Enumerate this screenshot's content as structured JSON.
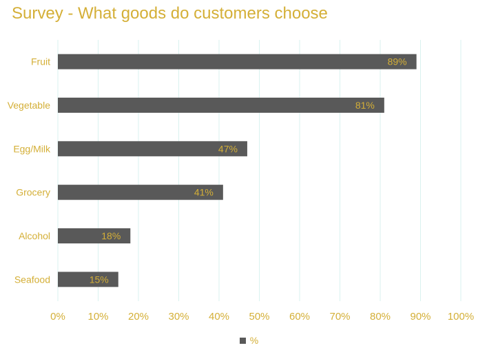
{
  "chart_data": {
    "type": "bar",
    "orientation": "horizontal",
    "title": "Survey - What goods do customers choose",
    "categories": [
      "Fruit",
      "Vegetable",
      "Egg/Milk",
      "Grocery",
      "Alcohol",
      "Seafood"
    ],
    "series": [
      {
        "name": "%",
        "values": [
          89,
          81,
          47,
          41,
          18,
          15
        ],
        "data_labels": [
          "89%",
          "81%",
          "47%",
          "41%",
          "18%",
          "15%"
        ],
        "color": "#595959"
      }
    ],
    "xlim": [
      0,
      100
    ],
    "x_ticks": [
      0,
      10,
      20,
      30,
      40,
      50,
      60,
      70,
      80,
      90,
      100
    ],
    "x_tick_labels": [
      "0%",
      "10%",
      "20%",
      "30%",
      "40%",
      "50%",
      "60%",
      "70%",
      "80%",
      "90%",
      "100%"
    ],
    "xlabel": "",
    "ylabel": "",
    "grid": true,
    "legend_position": "bottom",
    "colors": {
      "text": "#d4af37",
      "bar": "#595959",
      "gridline": "#d9f2ef"
    }
  }
}
